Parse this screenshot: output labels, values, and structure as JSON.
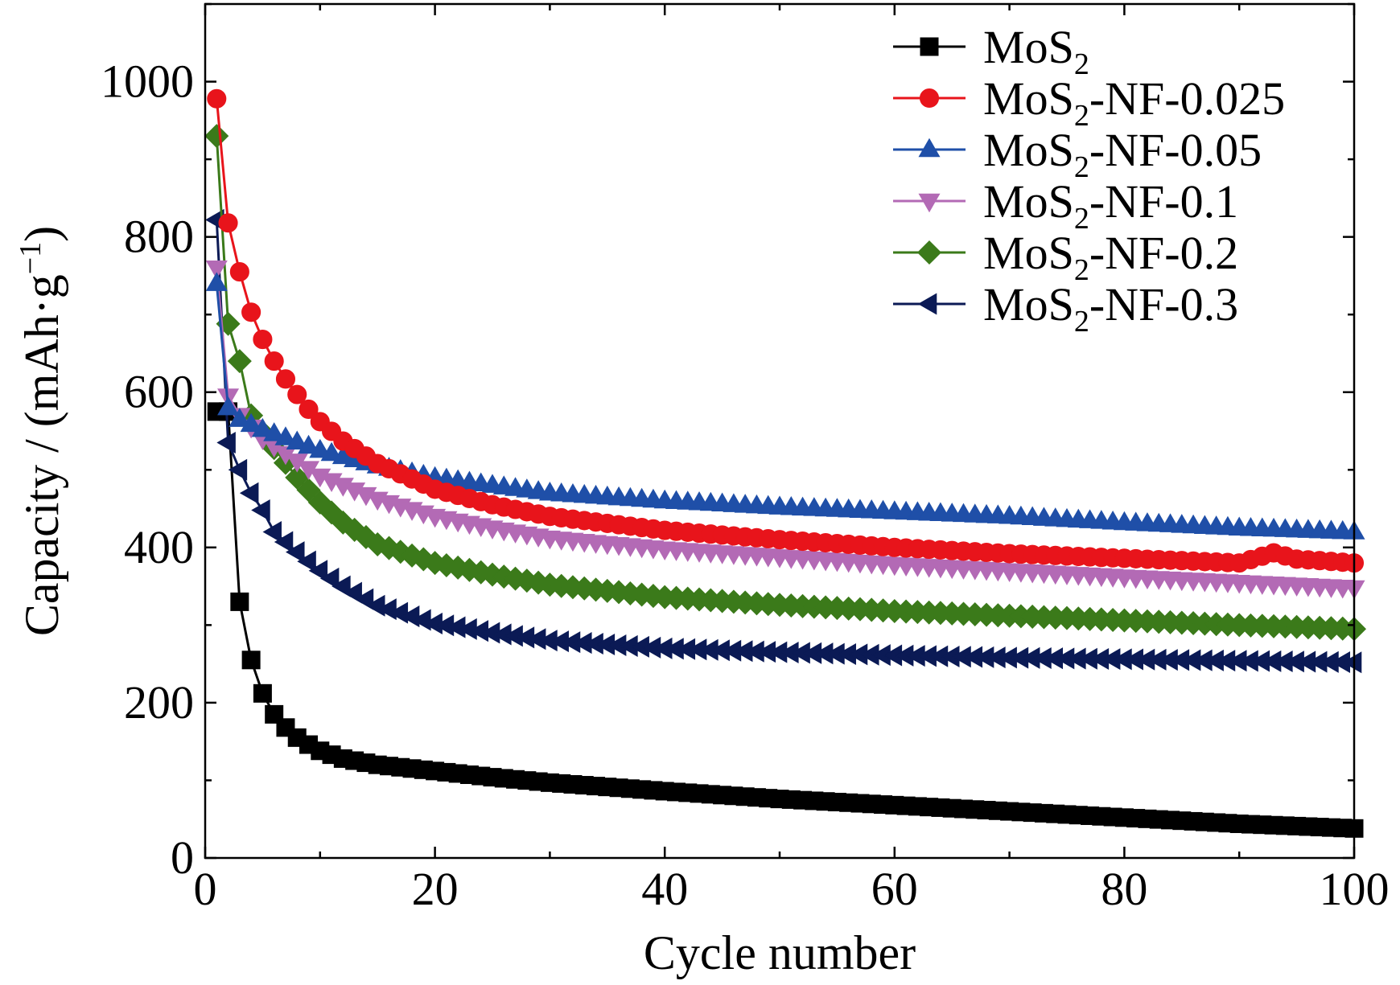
{
  "chart_data": {
    "type": "line",
    "title": "",
    "xlabel": "Cycle number",
    "ylabel_main": "Capacity / (mAh·g",
    "ylabel_sup": "−1",
    "ylabel_close": ")",
    "xlim": [
      0,
      100
    ],
    "ylim": [
      0,
      1100
    ],
    "x_ticks": [
      0,
      20,
      40,
      60,
      80,
      100
    ],
    "x_tick_labels": [
      "0",
      "20",
      "40",
      "60",
      "80",
      "100"
    ],
    "y_ticks": [
      0,
      200,
      400,
      600,
      800,
      1000
    ],
    "y_tick_labels": [
      "0",
      "200",
      "400",
      "600",
      "800",
      "1000"
    ],
    "legend_position": "top-right",
    "grid": false,
    "series": [
      {
        "name": "MoS2",
        "label_base": "MoS",
        "label_sub": "2",
        "label_suffix": "",
        "color": "#000000",
        "marker": "square",
        "anchors": [
          [
            1,
            575
          ],
          [
            2,
            575
          ],
          [
            3,
            330
          ],
          [
            4,
            255
          ],
          [
            5,
            212
          ],
          [
            6,
            185
          ],
          [
            7,
            168
          ],
          [
            8,
            155
          ],
          [
            9,
            146
          ],
          [
            10,
            138
          ],
          [
            12,
            128
          ],
          [
            15,
            120
          ],
          [
            20,
            112
          ],
          [
            25,
            104
          ],
          [
            30,
            97
          ],
          [
            40,
            86
          ],
          [
            50,
            76
          ],
          [
            60,
            68
          ],
          [
            70,
            60
          ],
          [
            80,
            52
          ],
          [
            90,
            44
          ],
          [
            100,
            38
          ]
        ]
      },
      {
        "name": "MoS2-NF-0.025",
        "label_base": "MoS",
        "label_sub": "2",
        "label_suffix": "-NF-0.025",
        "color": "#e8141b",
        "marker": "circle",
        "anchors": [
          [
            1,
            978
          ],
          [
            2,
            818
          ],
          [
            3,
            755
          ],
          [
            4,
            703
          ],
          [
            5,
            668
          ],
          [
            6,
            640
          ],
          [
            7,
            617
          ],
          [
            8,
            597
          ],
          [
            9,
            578
          ],
          [
            10,
            562
          ],
          [
            12,
            537
          ],
          [
            15,
            508
          ],
          [
            20,
            475
          ],
          [
            25,
            455
          ],
          [
            30,
            440
          ],
          [
            40,
            422
          ],
          [
            50,
            410
          ],
          [
            60,
            400
          ],
          [
            70,
            392
          ],
          [
            80,
            386
          ],
          [
            90,
            380
          ],
          [
            93,
            393
          ],
          [
            95,
            385
          ],
          [
            100,
            380
          ]
        ]
      },
      {
        "name": "MoS2-NF-0.05",
        "label_base": "MoS",
        "label_sub": "2",
        "label_suffix": "-NF-0.05",
        "color": "#1f4fa8",
        "marker": "triangle-up",
        "anchors": [
          [
            1,
            740
          ],
          [
            2,
            580
          ],
          [
            3,
            565
          ],
          [
            5,
            552
          ],
          [
            10,
            525
          ],
          [
            15,
            505
          ],
          [
            20,
            490
          ],
          [
            25,
            480
          ],
          [
            30,
            470
          ],
          [
            40,
            460
          ],
          [
            50,
            452
          ],
          [
            60,
            446
          ],
          [
            70,
            440
          ],
          [
            80,
            432
          ],
          [
            90,
            425
          ],
          [
            100,
            420
          ]
        ]
      },
      {
        "name": "MoS2-NF-0.1",
        "label_base": "MoS",
        "label_sub": "2",
        "label_suffix": "-NF-0.1",
        "color": "#b36ab5",
        "marker": "triangle-down",
        "anchors": [
          [
            1,
            760
          ],
          [
            2,
            595
          ],
          [
            3,
            570
          ],
          [
            5,
            540
          ],
          [
            10,
            492
          ],
          [
            15,
            462
          ],
          [
            20,
            440
          ],
          [
            25,
            425
          ],
          [
            30,
            412
          ],
          [
            40,
            398
          ],
          [
            50,
            388
          ],
          [
            60,
            378
          ],
          [
            70,
            370
          ],
          [
            80,
            362
          ],
          [
            90,
            355
          ],
          [
            100,
            348
          ]
        ]
      },
      {
        "name": "MoS2-NF-0.2",
        "label_base": "MoS",
        "label_sub": "2",
        "label_suffix": "-NF-0.2",
        "color": "#3b7a1a",
        "marker": "diamond",
        "anchors": [
          [
            1,
            930
          ],
          [
            2,
            688
          ],
          [
            3,
            640
          ],
          [
            4,
            570
          ],
          [
            5,
            548
          ],
          [
            6,
            528
          ],
          [
            8,
            490
          ],
          [
            10,
            458
          ],
          [
            12,
            432
          ],
          [
            15,
            404
          ],
          [
            20,
            380
          ],
          [
            25,
            365
          ],
          [
            30,
            352
          ],
          [
            40,
            336
          ],
          [
            50,
            326
          ],
          [
            60,
            318
          ],
          [
            70,
            312
          ],
          [
            80,
            306
          ],
          [
            90,
            300
          ],
          [
            100,
            295
          ]
        ]
      },
      {
        "name": "MoS2-NF-0.3",
        "label_base": "MoS",
        "label_sub": "2",
        "label_suffix": "-NF-0.3",
        "color": "#0b1a55",
        "marker": "triangle-left",
        "anchors": [
          [
            1,
            822
          ],
          [
            2,
            535
          ],
          [
            3,
            500
          ],
          [
            4,
            470
          ],
          [
            5,
            448
          ],
          [
            6,
            420
          ],
          [
            8,
            394
          ],
          [
            10,
            370
          ],
          [
            12,
            350
          ],
          [
            15,
            325
          ],
          [
            20,
            302
          ],
          [
            25,
            290
          ],
          [
            30,
            280
          ],
          [
            40,
            270
          ],
          [
            50,
            265
          ],
          [
            60,
            261
          ],
          [
            70,
            258
          ],
          [
            80,
            256
          ],
          [
            90,
            254
          ],
          [
            100,
            252
          ]
        ]
      }
    ]
  }
}
